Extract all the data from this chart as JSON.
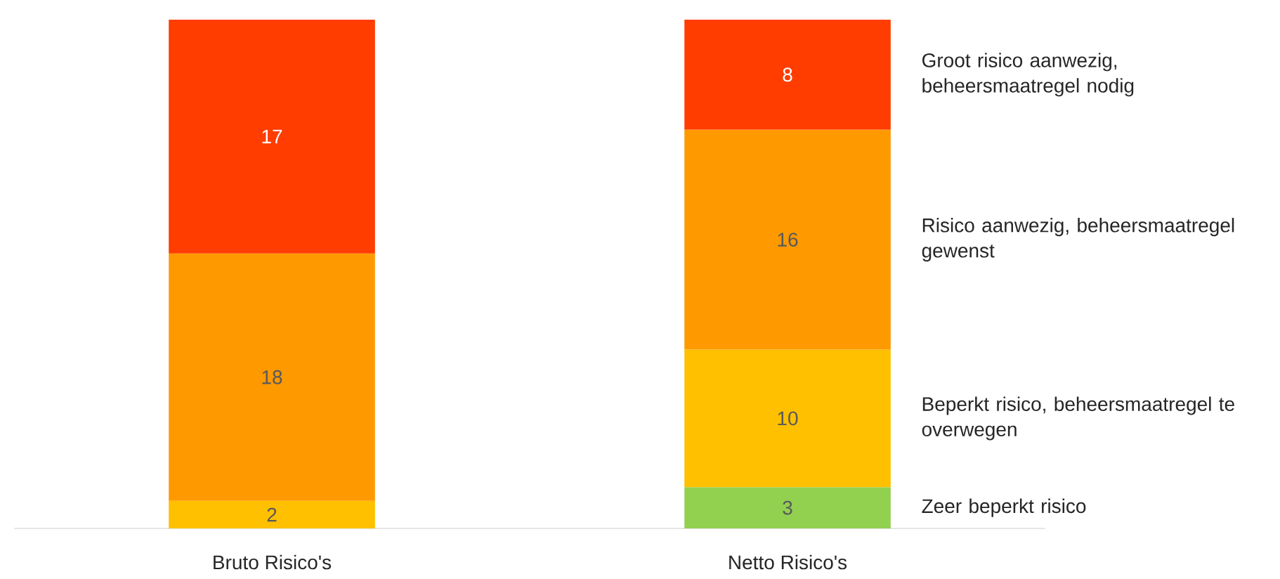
{
  "chart_data": {
    "type": "bar",
    "stacked": true,
    "categories": [
      "Bruto Risico's",
      "Netto Risico's"
    ],
    "data_labels": true,
    "legend": "right",
    "series": [
      {
        "name": "Zeer beperkt risico",
        "color": "#92d050",
        "values": [
          null,
          3
        ]
      },
      {
        "name": "Beperkt risico, beheersmaatregel te overwegen",
        "color": "#ffc000",
        "values": [
          2,
          10
        ]
      },
      {
        "name": "Risico aanwezig, beheersmaatregel gewenst",
        "color": "#ff9900",
        "values": [
          18,
          16
        ]
      },
      {
        "name": "Groot risico aanwezig, beheersmaatregel nodig",
        "color": "#ff3d00",
        "values": [
          17,
          8
        ]
      }
    ]
  }
}
